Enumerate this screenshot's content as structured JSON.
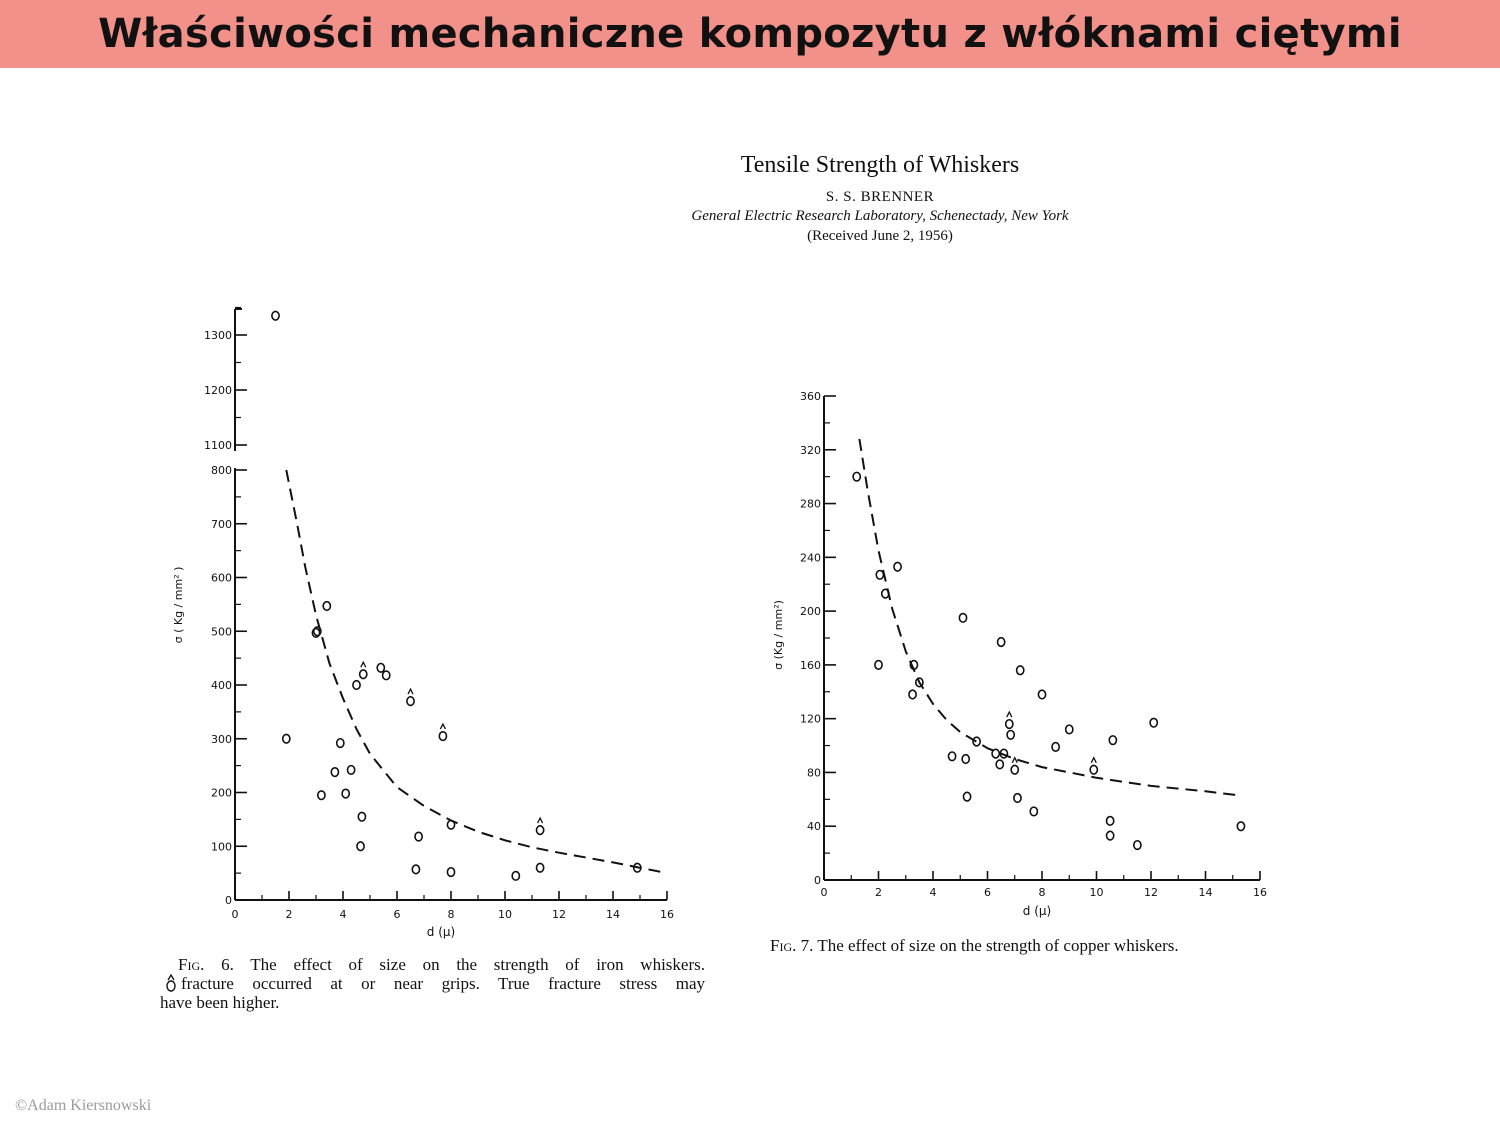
{
  "slide": {
    "title": "Właściwości mechaniczne kompozytu z włóknami ciętymi",
    "footer": "©Adam Kiersnowski"
  },
  "paper": {
    "title": "Tensile Strength of Whiskers",
    "author": "S. S. BRENNER",
    "affiliation": "General Electric Research Laboratory, Schenectady, New York",
    "received": "(Received June 2, 1956)"
  },
  "captions": {
    "fig6_label": "Fig. 6.",
    "fig6_line1": "The effect of size on the strength of iron whiskers.",
    "fig6_line2": "fracture occurred at or near grips. True fracture stress may",
    "fig6_line3": "have been higher.",
    "fig7_label": "Fig. 7.",
    "fig7_text": "The effect of size on the strength of copper whiskers."
  },
  "chart_data": [
    {
      "id": "fig6",
      "type": "scatter",
      "material": "iron",
      "xlabel": "d (μ)",
      "ylabel": "σ ( Kg / mm² )",
      "xlim": [
        0,
        16
      ],
      "xticks": [
        0,
        2,
        4,
        6,
        8,
        10,
        12,
        14,
        16
      ],
      "xtick_labels": [
        "0",
        "2",
        "4",
        "6",
        "8",
        "10",
        "12",
        "14",
        "16"
      ],
      "y_axis_break": true,
      "y_lower_range": [
        0,
        800
      ],
      "y_lower_ticks": [
        0,
        100,
        200,
        300,
        400,
        500,
        600,
        700,
        800
      ],
      "y_lower_tick_labels": [
        "0",
        "100",
        "200",
        "300",
        "400",
        "500",
        "600",
        "700",
        "800"
      ],
      "y_upper_range": [
        1100,
        1330
      ],
      "y_upper_ticks": [
        1100,
        1200,
        1300
      ],
      "y_upper_tick_labels": [
        "1100",
        "1200",
        "1300"
      ],
      "points": [
        {
          "x": 1.5,
          "y": 1335,
          "grip": false
        },
        {
          "x": 1.9,
          "y": 300,
          "grip": false
        },
        {
          "x": 3.0,
          "y": 497,
          "grip": false
        },
        {
          "x": 3.05,
          "y": 500,
          "grip": false
        },
        {
          "x": 3.2,
          "y": 195,
          "grip": false
        },
        {
          "x": 3.4,
          "y": 547,
          "grip": false
        },
        {
          "x": 3.7,
          "y": 238,
          "grip": false
        },
        {
          "x": 3.9,
          "y": 292,
          "grip": false
        },
        {
          "x": 4.1,
          "y": 198,
          "grip": false
        },
        {
          "x": 4.3,
          "y": 242,
          "grip": false
        },
        {
          "x": 4.5,
          "y": 400,
          "grip": false
        },
        {
          "x": 4.65,
          "y": 100,
          "grip": false
        },
        {
          "x": 4.7,
          "y": 155,
          "grip": false
        },
        {
          "x": 4.75,
          "y": 420,
          "grip": true
        },
        {
          "x": 5.4,
          "y": 432,
          "grip": false
        },
        {
          "x": 5.6,
          "y": 418,
          "grip": false
        },
        {
          "x": 6.5,
          "y": 370,
          "grip": true
        },
        {
          "x": 6.7,
          "y": 57,
          "grip": false
        },
        {
          "x": 6.8,
          "y": 118,
          "grip": false
        },
        {
          "x": 7.7,
          "y": 305,
          "grip": true
        },
        {
          "x": 8.0,
          "y": 52,
          "grip": false
        },
        {
          "x": 8.0,
          "y": 140,
          "grip": false
        },
        {
          "x": 10.4,
          "y": 45,
          "grip": false
        },
        {
          "x": 11.3,
          "y": 60,
          "grip": false
        },
        {
          "x": 11.3,
          "y": 130,
          "grip": true
        },
        {
          "x": 14.9,
          "y": 60,
          "grip": false
        }
      ],
      "trend": {
        "style": "dashed",
        "x": [
          1.9,
          2.3,
          2.6,
          3.0,
          3.5,
          4.0,
          4.5,
          5.0,
          6.0,
          7.0,
          8.0,
          9.0,
          10.0,
          11.0,
          12.0,
          13.0,
          14.0,
          15.0,
          15.8
        ],
        "y": [
          800,
          700,
          620,
          530,
          440,
          375,
          318,
          272,
          210,
          175,
          148,
          127,
          111,
          98,
          88,
          79,
          70,
          60,
          52
        ]
      }
    },
    {
      "id": "fig7",
      "type": "scatter",
      "material": "copper",
      "xlabel": "d (μ)",
      "ylabel": "σ (Kg / mm²)",
      "xlim": [
        0,
        16
      ],
      "ylim": [
        0,
        360
      ],
      "xticks": [
        0,
        2,
        4,
        6,
        8,
        10,
        12,
        14,
        16
      ],
      "xtick_labels": [
        "0",
        "2",
        "4",
        "6",
        "8",
        "10",
        "12",
        "14",
        "16"
      ],
      "yticks": [
        0,
        40,
        80,
        120,
        160,
        200,
        240,
        280,
        320,
        360
      ],
      "ytick_labels": [
        "0",
        "40",
        "80",
        "120",
        "160",
        "200",
        "240",
        "280",
        "320",
        "360"
      ],
      "points": [
        {
          "x": 1.2,
          "y": 300,
          "grip": false
        },
        {
          "x": 2.0,
          "y": 160,
          "grip": false
        },
        {
          "x": 2.05,
          "y": 227,
          "grip": false
        },
        {
          "x": 2.25,
          "y": 213,
          "grip": false
        },
        {
          "x": 2.7,
          "y": 233,
          "grip": false
        },
        {
          "x": 3.3,
          "y": 160,
          "grip": false
        },
        {
          "x": 3.25,
          "y": 138,
          "grip": false
        },
        {
          "x": 3.5,
          "y": 147,
          "grip": false
        },
        {
          "x": 4.7,
          "y": 92,
          "grip": false
        },
        {
          "x": 5.1,
          "y": 195,
          "grip": false
        },
        {
          "x": 5.2,
          "y": 90,
          "grip": false
        },
        {
          "x": 5.25,
          "y": 62,
          "grip": false
        },
        {
          "x": 5.6,
          "y": 103,
          "grip": false
        },
        {
          "x": 6.3,
          "y": 94,
          "grip": false
        },
        {
          "x": 6.45,
          "y": 86,
          "grip": false
        },
        {
          "x": 6.5,
          "y": 177,
          "grip": false
        },
        {
          "x": 6.6,
          "y": 94,
          "grip": false
        },
        {
          "x": 6.8,
          "y": 116,
          "grip": true
        },
        {
          "x": 6.85,
          "y": 108,
          "grip": false
        },
        {
          "x": 7.0,
          "y": 82,
          "grip": true
        },
        {
          "x": 7.1,
          "y": 61,
          "grip": false
        },
        {
          "x": 7.2,
          "y": 156,
          "grip": false
        },
        {
          "x": 7.7,
          "y": 51,
          "grip": false
        },
        {
          "x": 8.0,
          "y": 138,
          "grip": false
        },
        {
          "x": 8.5,
          "y": 99,
          "grip": false
        },
        {
          "x": 9.0,
          "y": 112,
          "grip": false
        },
        {
          "x": 9.9,
          "y": 82,
          "grip": true
        },
        {
          "x": 10.5,
          "y": 33,
          "grip": false
        },
        {
          "x": 10.5,
          "y": 44,
          "grip": false
        },
        {
          "x": 10.6,
          "y": 104,
          "grip": false
        },
        {
          "x": 11.5,
          "y": 26,
          "grip": false
        },
        {
          "x": 12.1,
          "y": 117,
          "grip": false
        },
        {
          "x": 15.3,
          "y": 40,
          "grip": false
        }
      ],
      "trend": {
        "style": "dashed",
        "x": [
          1.3,
          1.6,
          2.0,
          2.5,
          3.0,
          3.5,
          4.0,
          4.5,
          5.0,
          6.0,
          7.0,
          8.0,
          9.0,
          10.0,
          11.0,
          12.0,
          13.0,
          14.0,
          15.2
        ],
        "y": [
          328,
          290,
          245,
          202,
          170,
          147,
          131,
          119,
          110,
          98,
          90,
          84,
          80,
          76,
          73,
          70,
          68,
          66,
          63
        ]
      }
    }
  ],
  "colors": {
    "title_bar": "#f2918a",
    "ink": "#111111",
    "footer": "#9a9a9a"
  }
}
